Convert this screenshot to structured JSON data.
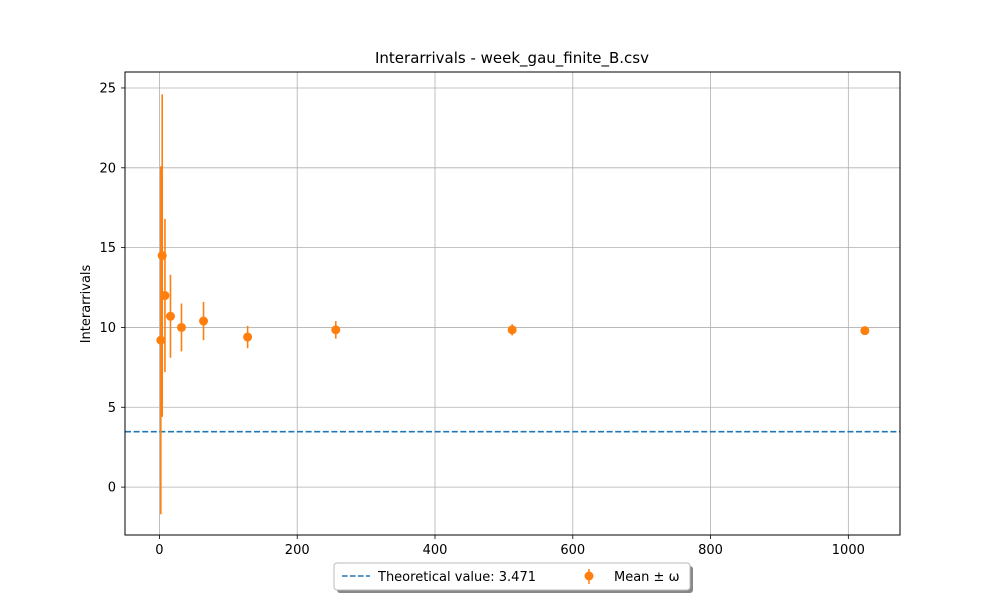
{
  "chart_data": {
    "type": "scatter",
    "title": "Interarrivals - week_gau_finite_B.csv",
    "xlabel": "",
    "ylabel": "Interarrivals",
    "xlim": [
      -50,
      1075
    ],
    "ylim": [
      -3,
      26
    ],
    "xticks": [
      0,
      200,
      400,
      600,
      800,
      1000
    ],
    "yticks": [
      0,
      5,
      10,
      15,
      20,
      25
    ],
    "grid": true,
    "legend_position": "bottom-center",
    "theoretical": {
      "label": "Theoretical value: 3.471",
      "value": 3.471,
      "color": "#1f77b4",
      "style": "dashed"
    },
    "series": [
      {
        "name": "Mean ± ω",
        "color": "#ff7f0e",
        "points": [
          {
            "x": 2,
            "y": 9.2,
            "err": 10.9
          },
          {
            "x": 4,
            "y": 14.5,
            "err": 10.1
          },
          {
            "x": 8,
            "y": 12.0,
            "err": 4.8
          },
          {
            "x": 16,
            "y": 10.7,
            "err": 2.6
          },
          {
            "x": 32,
            "y": 10.0,
            "err": 1.5
          },
          {
            "x": 64,
            "y": 10.4,
            "err": 1.2
          },
          {
            "x": 128,
            "y": 9.4,
            "err": 0.7
          },
          {
            "x": 256,
            "y": 9.85,
            "err": 0.55
          },
          {
            "x": 512,
            "y": 9.85,
            "err": 0.35
          },
          {
            "x": 1024,
            "y": 9.8,
            "err": 0.2
          }
        ]
      }
    ]
  }
}
